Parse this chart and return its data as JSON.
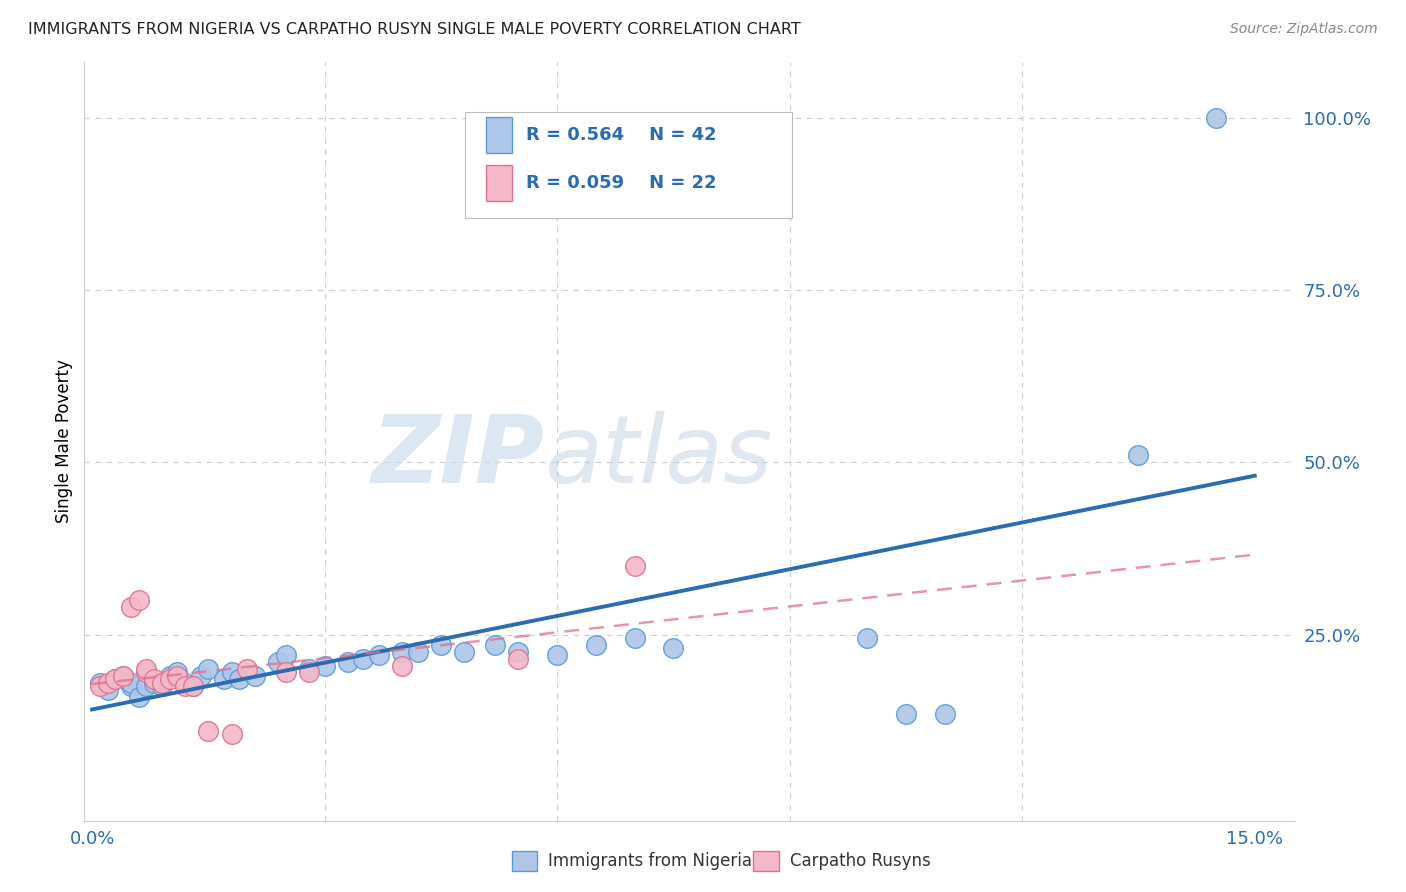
{
  "title": "IMMIGRANTS FROM NIGERIA VS CARPATHO RUSYN SINGLE MALE POVERTY CORRELATION CHART",
  "source": "Source: ZipAtlas.com",
  "ylabel": "Single Male Poverty",
  "ytick_labels": [
    "100.0%",
    "75.0%",
    "50.0%",
    "25.0%"
  ],
  "ytick_values": [
    1.0,
    0.75,
    0.5,
    0.25
  ],
  "xtick_labels": [
    "0.0%",
    "15.0%"
  ],
  "xtick_values": [
    0.0,
    0.15
  ],
  "xlim": [
    -0.001,
    0.155
  ],
  "ylim": [
    -0.02,
    1.08
  ],
  "watermark_zip": "ZIP",
  "watermark_atlas": "atlas",
  "legend_nigeria_R": "R = 0.564",
  "legend_nigeria_N": "N = 42",
  "legend_rusyn_R": "R = 0.059",
  "legend_rusyn_N": "N = 22",
  "legend_label_nigeria": "Immigrants from Nigeria",
  "legend_label_rusyn": "Carpatho Rusyns",
  "nigeria_color": "#aec6e8",
  "nigeria_edge_color": "#5b9bd5",
  "rusyn_color": "#f4b8c8",
  "rusyn_edge_color": "#e07090",
  "nigeria_line_color": "#2b6cb0",
  "rusyn_line_color": "#e07090",
  "grid_color": "#cccccc",
  "background_color": "#ffffff",
  "nigeria_x": [
    0.001,
    0.002,
    0.003,
    0.004,
    0.005,
    0.005,
    0.006,
    0.007,
    0.008,
    0.009,
    0.01,
    0.011,
    0.012,
    0.013,
    0.014,
    0.015,
    0.017,
    0.018,
    0.019,
    0.021,
    0.024,
    0.025,
    0.028,
    0.03,
    0.033,
    0.035,
    0.037,
    0.04,
    0.042,
    0.045,
    0.048,
    0.052,
    0.055,
    0.06,
    0.065,
    0.07,
    0.075,
    0.1,
    0.105,
    0.11,
    0.135,
    0.145
  ],
  "nigeria_y": [
    0.18,
    0.17,
    0.185,
    0.19,
    0.175,
    0.18,
    0.16,
    0.175,
    0.18,
    0.175,
    0.19,
    0.195,
    0.18,
    0.175,
    0.19,
    0.2,
    0.185,
    0.195,
    0.185,
    0.19,
    0.21,
    0.22,
    0.2,
    0.205,
    0.21,
    0.215,
    0.22,
    0.225,
    0.225,
    0.235,
    0.225,
    0.235,
    0.225,
    0.22,
    0.235,
    0.245,
    0.23,
    0.245,
    0.135,
    0.135,
    0.51,
    1.0
  ],
  "rusyn_x": [
    0.001,
    0.002,
    0.003,
    0.004,
    0.005,
    0.006,
    0.007,
    0.007,
    0.008,
    0.009,
    0.01,
    0.011,
    0.012,
    0.013,
    0.015,
    0.018,
    0.02,
    0.025,
    0.028,
    0.04,
    0.055,
    0.07
  ],
  "rusyn_y": [
    0.175,
    0.18,
    0.185,
    0.19,
    0.29,
    0.3,
    0.195,
    0.2,
    0.185,
    0.18,
    0.185,
    0.19,
    0.175,
    0.175,
    0.11,
    0.105,
    0.2,
    0.195,
    0.195,
    0.205,
    0.215,
    0.35
  ]
}
